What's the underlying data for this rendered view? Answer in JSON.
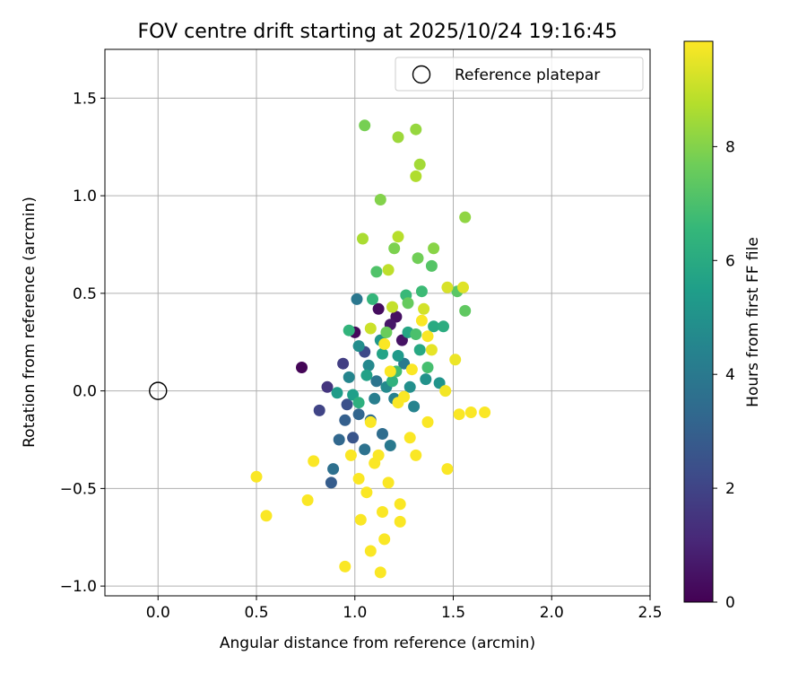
{
  "chart_data": {
    "type": "scatter",
    "title": "FOV centre drift starting at 2025/10/24 19:16:45",
    "xlabel": "Angular distance from reference (arcmin)",
    "ylabel": "Rotation from reference (arcmin)",
    "xlim": [
      -0.27,
      2.5
    ],
    "ylim": [
      -1.05,
      1.75
    ],
    "xticks": [
      0.0,
      0.5,
      1.0,
      1.5,
      2.0,
      2.5
    ],
    "xtick_labels": [
      "0.0",
      "0.5",
      "1.0",
      "1.5",
      "2.0",
      "2.5"
    ],
    "yticks": [
      -1.0,
      -0.5,
      0.0,
      0.5,
      1.0,
      1.5
    ],
    "ytick_labels": [
      "−1.0",
      "−0.5",
      "0.0",
      "0.5",
      "1.0",
      "1.5"
    ],
    "grid": true,
    "legend": {
      "position": "top-right",
      "entries": [
        "Reference platepar"
      ]
    },
    "reference_point": {
      "x": 0.0,
      "y": 0.0,
      "label": "Reference platepar"
    },
    "colorbar": {
      "label": "Hours from first FF file",
      "min": 0,
      "max": 9.85,
      "ticks": [
        0,
        2,
        4,
        6,
        8
      ],
      "tick_labels": [
        "0",
        "2",
        "4",
        "6",
        "8"
      ],
      "colormap": "viridis"
    },
    "points": [
      [
        0.73,
        0.12,
        0.1
      ],
      [
        1.0,
        0.3,
        0.2
      ],
      [
        1.12,
        0.42,
        0.3
      ],
      [
        1.21,
        0.38,
        0.4
      ],
      [
        1.24,
        0.26,
        0.5
      ],
      [
        1.18,
        0.34,
        0.6
      ],
      [
        0.86,
        0.02,
        1.5
      ],
      [
        0.94,
        0.14,
        1.8
      ],
      [
        0.82,
        -0.1,
        2.0
      ],
      [
        1.05,
        0.2,
        2.2
      ],
      [
        0.96,
        -0.07,
        2.4
      ],
      [
        0.99,
        -0.24,
        2.6
      ],
      [
        0.88,
        -0.47,
        2.9
      ],
      [
        0.95,
        -0.15,
        3.0
      ],
      [
        1.02,
        -0.12,
        3.2
      ],
      [
        0.92,
        -0.25,
        3.3
      ],
      [
        1.08,
        -0.15,
        3.4
      ],
      [
        1.14,
        -0.22,
        3.5
      ],
      [
        0.89,
        -0.4,
        3.6
      ],
      [
        1.05,
        -0.3,
        3.7
      ],
      [
        1.11,
        0.05,
        3.8
      ],
      [
        1.01,
        0.47,
        3.9
      ],
      [
        1.18,
        -0.28,
        4.0
      ],
      [
        1.25,
        0.14,
        4.1
      ],
      [
        1.1,
        -0.04,
        4.2
      ],
      [
        1.2,
        -0.04,
        4.3
      ],
      [
        1.3,
        -0.08,
        4.4
      ],
      [
        0.97,
        0.07,
        4.5
      ],
      [
        1.07,
        0.13,
        4.6
      ],
      [
        1.16,
        0.02,
        4.7
      ],
      [
        1.02,
        0.23,
        4.8
      ],
      [
        1.28,
        0.02,
        4.9
      ],
      [
        1.36,
        0.06,
        5.0
      ],
      [
        1.43,
        0.04,
        5.1
      ],
      [
        1.13,
        0.26,
        5.2
      ],
      [
        1.22,
        0.18,
        5.3
      ],
      [
        0.91,
        -0.01,
        5.4
      ],
      [
        0.99,
        -0.02,
        5.5
      ],
      [
        1.06,
        0.08,
        5.6
      ],
      [
        1.14,
        0.19,
        5.7
      ],
      [
        1.27,
        0.3,
        5.8
      ],
      [
        1.33,
        0.21,
        5.9
      ],
      [
        1.4,
        0.33,
        6.0
      ],
      [
        1.45,
        0.33,
        6.1
      ],
      [
        1.02,
        -0.06,
        6.2
      ],
      [
        1.19,
        0.05,
        6.3
      ],
      [
        0.97,
        0.31,
        6.4
      ],
      [
        1.09,
        0.47,
        6.5
      ],
      [
        1.26,
        0.49,
        6.6
      ],
      [
        1.34,
        0.51,
        6.7
      ],
      [
        1.21,
        0.1,
        6.8
      ],
      [
        1.37,
        0.12,
        6.9
      ],
      [
        1.31,
        0.29,
        7.0
      ],
      [
        1.11,
        0.61,
        7.1
      ],
      [
        1.39,
        0.64,
        7.2
      ],
      [
        1.52,
        0.51,
        7.3
      ],
      [
        1.56,
        0.41,
        7.4
      ],
      [
        1.27,
        0.45,
        7.5
      ],
      [
        1.16,
        0.3,
        7.6
      ],
      [
        1.32,
        0.68,
        7.7
      ],
      [
        1.05,
        1.36,
        7.8
      ],
      [
        1.2,
        0.73,
        7.9
      ],
      [
        1.13,
        0.98,
        8.0
      ],
      [
        1.4,
        0.73,
        8.1
      ],
      [
        1.56,
        0.89,
        8.2
      ],
      [
        1.31,
        1.34,
        8.3
      ],
      [
        1.22,
        1.3,
        8.4
      ],
      [
        1.33,
        1.16,
        8.5
      ],
      [
        1.04,
        0.78,
        8.6
      ],
      [
        1.31,
        1.1,
        8.7
      ],
      [
        1.22,
        0.79,
        8.8
      ],
      [
        1.17,
        0.62,
        8.9
      ],
      [
        1.19,
        0.43,
        9.0
      ],
      [
        1.08,
        0.32,
        9.1
      ],
      [
        1.35,
        0.42,
        9.2
      ],
      [
        1.47,
        0.53,
        9.3
      ],
      [
        1.55,
        0.53,
        9.4
      ],
      [
        1.39,
        0.21,
        9.5
      ],
      [
        1.51,
        0.16,
        9.6
      ],
      [
        1.46,
        0.0,
        9.7
      ],
      [
        1.53,
        -0.12,
        9.8
      ],
      [
        1.59,
        -0.11,
        9.8
      ],
      [
        1.66,
        -0.11,
        9.8
      ],
      [
        1.37,
        -0.16,
        9.8
      ],
      [
        1.1,
        -0.37,
        9.8
      ],
      [
        1.23,
        -0.58,
        9.8
      ],
      [
        1.14,
        -0.62,
        9.8
      ],
      [
        1.15,
        -0.76,
        9.8
      ],
      [
        1.06,
        -0.52,
        9.8
      ],
      [
        1.03,
        -0.66,
        9.8
      ],
      [
        1.08,
        -0.82,
        9.8
      ],
      [
        0.95,
        -0.9,
        9.8
      ],
      [
        1.13,
        -0.93,
        9.8
      ],
      [
        1.23,
        -0.67,
        9.8
      ],
      [
        0.76,
        -0.56,
        9.8
      ],
      [
        0.55,
        -0.64,
        9.8
      ],
      [
        0.5,
        -0.44,
        9.8
      ],
      [
        0.79,
        -0.36,
        9.8
      ],
      [
        1.47,
        -0.4,
        9.8
      ],
      [
        1.31,
        -0.33,
        9.8
      ],
      [
        1.17,
        -0.47,
        9.8
      ],
      [
        1.02,
        -0.45,
        9.8
      ],
      [
        1.28,
        -0.24,
        9.8
      ],
      [
        1.22,
        -0.06,
        9.8
      ],
      [
        1.08,
        -0.16,
        9.8
      ],
      [
        1.12,
        -0.33,
        9.8
      ],
      [
        1.18,
        0.1,
        9.8
      ],
      [
        1.29,
        0.11,
        9.8
      ],
      [
        1.34,
        0.36,
        9.8
      ],
      [
        1.37,
        0.28,
        9.8
      ],
      [
        1.25,
        -0.03,
        9.8
      ],
      [
        1.15,
        0.24,
        9.8
      ],
      [
        0.98,
        -0.33,
        9.8
      ]
    ]
  }
}
